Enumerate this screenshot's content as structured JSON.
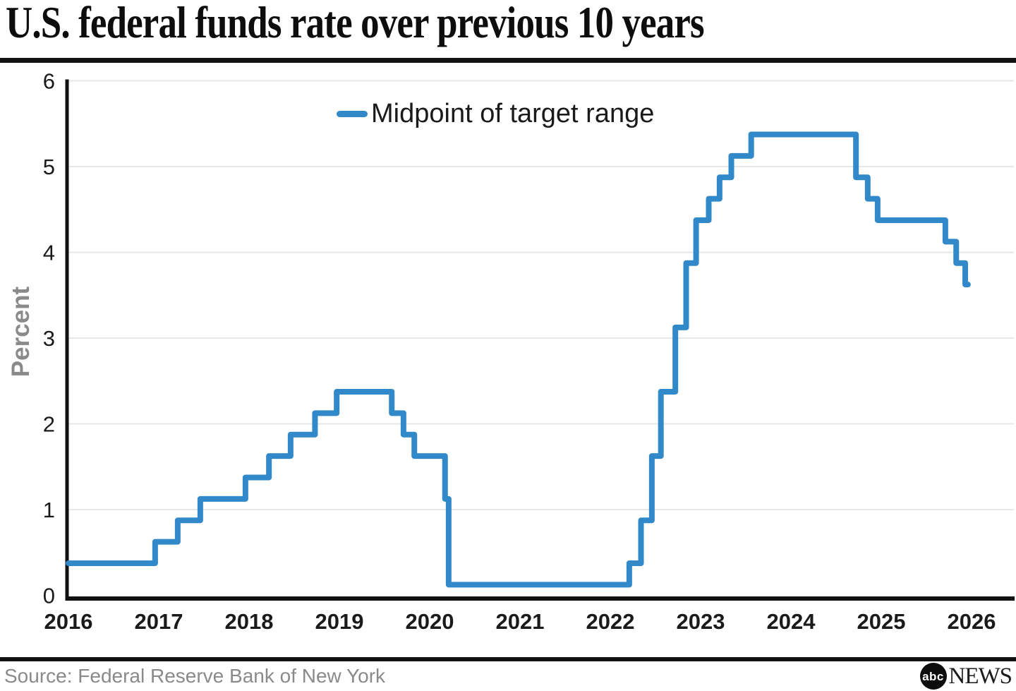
{
  "header": {
    "title": "U.S. federal funds rate over previous 10 years"
  },
  "chart_data": {
    "type": "line",
    "subtype": "step-after",
    "title": "U.S. federal funds rate over previous 10 years",
    "xlabel": "",
    "ylabel": "Percent",
    "legend": {
      "label": "Midpoint of target range",
      "position": "top-center-inside"
    },
    "xlim": [
      2016,
      2026.47
    ],
    "ylim": [
      0,
      6
    ],
    "x_ticks": [
      "2016",
      "2017",
      "2018",
      "2019",
      "2020",
      "2021",
      "2022",
      "2023",
      "2024",
      "2025",
      "2026"
    ],
    "y_ticks": [
      "0",
      "1",
      "2",
      "3",
      "4",
      "5",
      "6"
    ],
    "grid": "horizontal",
    "series": [
      {
        "name": "Midpoint of target range",
        "color": "#3189ca",
        "points": [
          [
            2016.0,
            0.375
          ],
          [
            2016.96,
            0.625
          ],
          [
            2017.21,
            0.875
          ],
          [
            2017.46,
            1.125
          ],
          [
            2017.96,
            1.375
          ],
          [
            2018.22,
            1.625
          ],
          [
            2018.46,
            1.875
          ],
          [
            2018.73,
            2.125
          ],
          [
            2018.97,
            2.375
          ],
          [
            2019.58,
            2.125
          ],
          [
            2019.71,
            1.875
          ],
          [
            2019.83,
            1.625
          ],
          [
            2020.17,
            1.125
          ],
          [
            2020.21,
            0.125
          ],
          [
            2022.21,
            0.375
          ],
          [
            2022.34,
            0.875
          ],
          [
            2022.46,
            1.625
          ],
          [
            2022.56,
            2.375
          ],
          [
            2022.72,
            3.125
          ],
          [
            2022.84,
            3.875
          ],
          [
            2022.95,
            4.375
          ],
          [
            2023.09,
            4.625
          ],
          [
            2023.21,
            4.875
          ],
          [
            2023.34,
            5.125
          ],
          [
            2023.56,
            5.375
          ],
          [
            2024.72,
            4.875
          ],
          [
            2024.85,
            4.625
          ],
          [
            2024.96,
            4.375
          ],
          [
            2025.71,
            4.125
          ],
          [
            2025.83,
            3.875
          ],
          [
            2025.93,
            3.625
          ]
        ],
        "end_x": 2025.96
      }
    ]
  },
  "footer": {
    "source": "Source: Federal Reserve Bank of New York",
    "logo": {
      "abc": "abc",
      "news": "NEWS"
    }
  },
  "colors": {
    "line": "#3189ca",
    "grid": "#e7e7e7",
    "axis": "#111111",
    "tick_text": "#1a1a1a",
    "muted_text": "#8a8a8a"
  }
}
